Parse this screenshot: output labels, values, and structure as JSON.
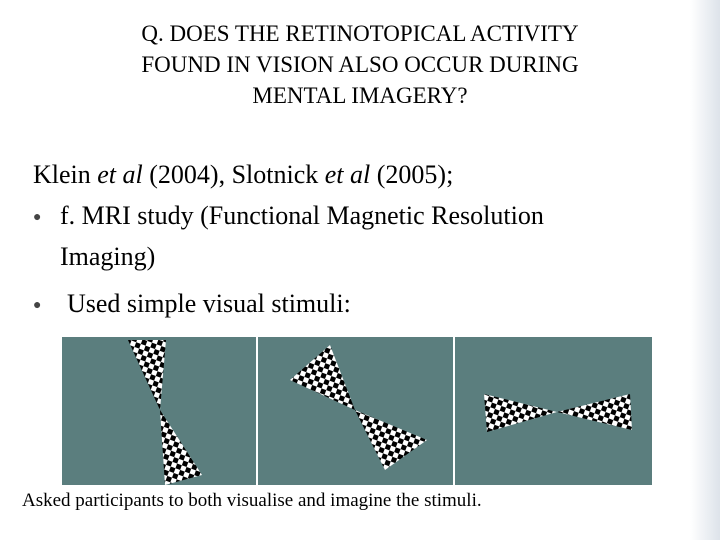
{
  "header": {
    "title_lines": [
      "Q. DOES THE RETINOTOPICAL ACTIVITY",
      "FOUND IN VISION ALSO OCCUR DURING",
      "MENTAL IMAGERY?"
    ]
  },
  "body": {
    "intro": [
      "Klein ",
      "et al",
      " (2004), Slotnick ",
      "et al",
      " (2005);"
    ],
    "bullets": [
      [
        "f. MRI study (Functional Magnetic Resolution",
        "Imaging)"
      ],
      [
        "Used simple visual stimuli:"
      ]
    ]
  },
  "caption": "Asked participants to both visualise and imagine the stimuli."
}
